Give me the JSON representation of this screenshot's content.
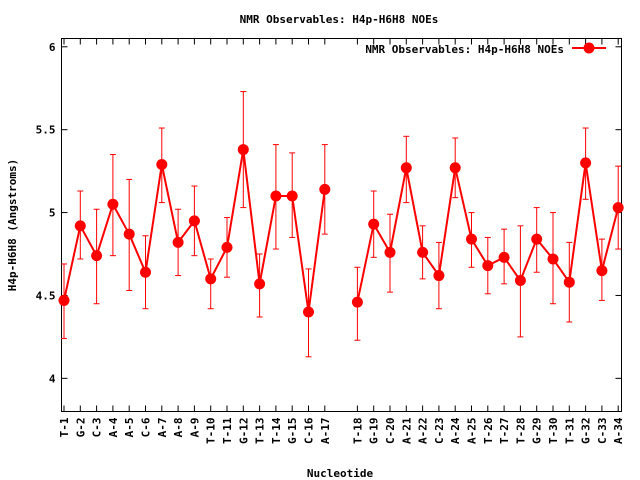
{
  "chart_data": {
    "type": "line",
    "title": "NMR Observables: H4p-H6H8 NOEs",
    "xlabel": "Nucleotide",
    "ylabel": "H4p-H6H8 (Angstroms)",
    "ylim": [
      3.8,
      6.05
    ],
    "yticks": [
      "4",
      "4.5",
      "5",
      "5.5",
      "6"
    ],
    "grid": false,
    "legend_position": "top-right",
    "series": [
      {
        "name": "NMR Observables: H4p-H6H8 NOEs",
        "color": "#ff0000",
        "segments": [
          {
            "categories": [
              "T-1",
              "G-2",
              "C-3",
              "A-4",
              "A-5",
              "C-6",
              "A-7",
              "A-8",
              "A-9",
              "T-10",
              "T-11",
              "G-12",
              "T-13",
              "T-14",
              "G-15",
              "C-16",
              "A-17"
            ],
            "values": [
              4.47,
              4.92,
              4.74,
              5.05,
              4.87,
              4.64,
              5.29,
              4.82,
              4.95,
              4.6,
              4.79,
              5.38,
              4.57,
              5.1,
              5.1,
              4.4,
              5.14
            ],
            "err_low": [
              4.24,
              4.72,
              4.45,
              4.74,
              4.53,
              4.42,
              5.06,
              4.62,
              4.74,
              4.42,
              4.61,
              5.03,
              4.37,
              4.78,
              4.85,
              4.13,
              4.87
            ],
            "err_high": [
              4.69,
              5.13,
              5.02,
              5.35,
              5.2,
              4.86,
              5.51,
              5.02,
              5.16,
              4.72,
              4.97,
              5.73,
              4.75,
              5.41,
              5.36,
              4.66,
              5.41
            ]
          },
          {
            "categories": [
              "T-18",
              "G-19",
              "C-20",
              "A-21",
              "A-22",
              "C-23",
              "A-24",
              "A-25",
              "T-26",
              "T-27",
              "T-28",
              "G-29",
              "T-30",
              "T-31",
              "G-32",
              "C-33",
              "A-34"
            ],
            "values": [
              4.46,
              4.93,
              4.76,
              5.27,
              4.76,
              4.62,
              5.27,
              4.84,
              4.68,
              4.73,
              4.59,
              4.84,
              4.72,
              4.58,
              5.3,
              4.65,
              5.03
            ],
            "err_low": [
              4.23,
              4.73,
              4.52,
              5.06,
              4.6,
              4.42,
              5.09,
              4.67,
              4.51,
              4.57,
              4.25,
              4.64,
              4.45,
              4.34,
              5.08,
              4.47,
              4.78
            ],
            "err_high": [
              4.67,
              5.13,
              4.99,
              5.46,
              4.92,
              4.82,
              5.45,
              5.0,
              4.85,
              4.9,
              4.92,
              5.03,
              5.0,
              4.82,
              5.51,
              4.84,
              5.28
            ]
          }
        ]
      }
    ]
  }
}
